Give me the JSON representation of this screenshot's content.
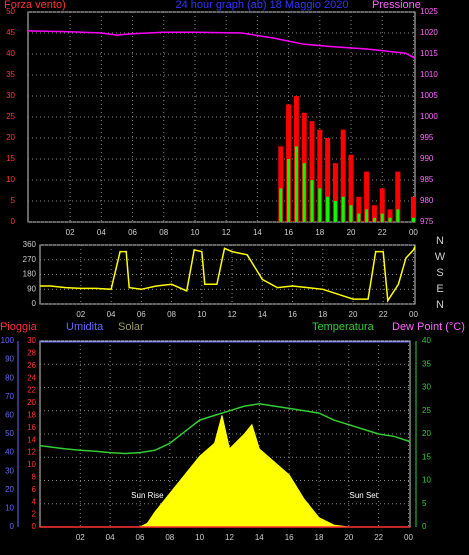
{
  "chart_data": [
    {
      "type": "bar",
      "title": "24 hour graph (ab) 18 Maggio 2020",
      "left_label": "Forza vento)",
      "right_label": "Pressione",
      "xlim": [
        -0.7,
        24.1
      ],
      "xticks": [
        {
          "value": 2,
          "label": "02"
        },
        {
          "value": 4,
          "label": "04"
        },
        {
          "value": 6,
          "label": "06"
        },
        {
          "value": 8,
          "label": "08"
        },
        10,
        12,
        14,
        16,
        18,
        20,
        22,
        {
          "value": 24,
          "label": "00"
        }
      ],
      "ylim": [
        0,
        50
      ],
      "yticks": [
        0,
        5,
        10,
        15,
        20,
        25,
        30,
        35,
        40,
        45,
        50
      ],
      "y2lim": [
        975,
        1025
      ],
      "y2ticks": [
        975,
        980,
        985,
        990,
        995,
        1000,
        1005,
        1010,
        1015,
        1020,
        1025
      ],
      "series": [
        {
          "style": "bar",
          "color": "#ff0000",
          "x": [
            15,
            15.5,
            16,
            16.5,
            17,
            17.5,
            18,
            18.5,
            19,
            19.5,
            20,
            20.5,
            21,
            21.5,
            22,
            22.5,
            23,
            23.5,
            24
          ],
          "values": [
            0,
            18,
            28,
            30,
            26,
            24,
            22,
            20,
            14,
            22,
            16,
            6,
            12,
            4,
            8,
            3,
            12,
            0,
            6
          ]
        },
        {
          "style": "bar",
          "color": "#00ff00",
          "x": [
            15,
            15.5,
            16,
            16.5,
            17,
            17.5,
            18,
            18.5,
            19,
            19.5,
            20,
            20.5,
            21,
            21.5,
            22,
            22.5,
            23,
            23.5,
            24
          ],
          "values": [
            0,
            8,
            15,
            18,
            14,
            10,
            8,
            6,
            5,
            6,
            4,
            2,
            3,
            1,
            2,
            1,
            3,
            0,
            1
          ]
        },
        {
          "style": "line",
          "axis": "y2",
          "color": "#ff00ff",
          "x": [
            -0.7,
            2,
            4,
            5,
            6,
            8,
            10,
            13,
            15,
            17,
            19,
            21,
            23.5,
            24.1
          ],
          "values": [
            1020.5,
            1020.3,
            1020,
            1019.5,
            1019.8,
            1020.2,
            1020.2,
            1020,
            1018.8,
            1017.3,
            1016.7,
            1016.2,
            1015.2,
            1014
          ]
        }
      ]
    },
    {
      "type": "line",
      "right_labels": [
        "N",
        "W",
        "S",
        "E",
        "N"
      ],
      "xlim": [
        -0.7,
        24.1
      ],
      "xticks": [
        {
          "value": 2,
          "label": "02"
        },
        {
          "value": 4,
          "label": "04"
        },
        {
          "value": 6,
          "label": "06"
        },
        {
          "value": 8,
          "label": "08"
        },
        10,
        12,
        14,
        16,
        18,
        20,
        22,
        {
          "value": 24,
          "label": "00"
        }
      ],
      "ylim": [
        0,
        360
      ],
      "yticks": [
        0,
        90,
        180,
        270,
        360
      ],
      "series": [
        {
          "style": "line",
          "color": "#ffff00",
          "x": [
            -0.7,
            0,
            1,
            2,
            3,
            4,
            4.6,
            5,
            5.2,
            6,
            7,
            8,
            9,
            9.5,
            10,
            10.2,
            11,
            11.5,
            12,
            13,
            14,
            15,
            16,
            17,
            18,
            19,
            20,
            21,
            21.5,
            22,
            22.3,
            23,
            23.5,
            24,
            24.1
          ],
          "values": [
            110,
            110,
            100,
            95,
            95,
            90,
            320,
            320,
            100,
            90,
            110,
            120,
            80,
            330,
            320,
            120,
            120,
            340,
            320,
            300,
            150,
            100,
            110,
            100,
            90,
            60,
            30,
            30,
            320,
            320,
            20,
            120,
            280,
            330,
            350
          ]
        }
      ]
    },
    {
      "type": "line",
      "labels": [
        "Pioggia",
        "Umidita",
        "Solar",
        "Temperatura",
        "Dew Point (°C)"
      ],
      "xlim": [
        -0.7,
        24.1
      ],
      "xticks": [
        {
          "value": 2,
          "label": "02"
        },
        {
          "value": 4,
          "label": "04"
        },
        {
          "value": 6,
          "label": "06"
        },
        {
          "value": 8,
          "label": "08"
        },
        10,
        12,
        14,
        16,
        18,
        20,
        22,
        {
          "value": 24,
          "label": "00"
        }
      ],
      "ylim": [
        0,
        100
      ],
      "yticks": [
        0,
        10,
        20,
        30,
        40,
        50,
        60,
        70,
        80,
        90,
        100
      ],
      "y3lim": [
        0,
        30
      ],
      "y3ticks": [
        0,
        2,
        4,
        6,
        8,
        10,
        12,
        14,
        16,
        18,
        20,
        22,
        24,
        26,
        28,
        30
      ],
      "y2lim": [
        0,
        40
      ],
      "y2ticks": [
        0,
        5,
        10,
        15,
        20,
        25,
        30,
        35,
        40
      ],
      "annotations": [
        {
          "text": "Sun Rise",
          "x": 6.5
        },
        {
          "text": "Sun Set",
          "x": 21
        }
      ],
      "series": [
        {
          "style": "area",
          "color": "#ffff00",
          "x": [
            -0.7,
            6,
            6.5,
            7,
            8,
            9,
            10,
            11,
            11.5,
            12,
            13,
            13.5,
            14,
            15,
            16,
            17,
            18,
            19,
            20,
            24.1
          ],
          "values": [
            0,
            0,
            2,
            8,
            18,
            28,
            38,
            45,
            60,
            42,
            50,
            55,
            42,
            35,
            28,
            15,
            5,
            1,
            0,
            0
          ]
        },
        {
          "style": "line",
          "axis": "y2",
          "color": "#33cc33",
          "x": [
            -0.7,
            0,
            1,
            2,
            3,
            4,
            5,
            6,
            7,
            8,
            9,
            10,
            11,
            12,
            13,
            14,
            15,
            16,
            17,
            18,
            19,
            20,
            21,
            22,
            23,
            24,
            24.1
          ],
          "values": [
            17.5,
            17.2,
            16.8,
            16.5,
            16.3,
            16,
            15.8,
            16,
            16.5,
            18,
            20.5,
            23,
            24,
            25,
            26,
            26.5,
            26,
            25.5,
            25,
            24.5,
            23,
            22,
            21,
            20,
            19.5,
            18.5,
            18.2
          ]
        },
        {
          "style": "line",
          "axis": "y3",
          "color": "#ff3333",
          "x": [
            -0.7,
            24.1
          ],
          "values": [
            0,
            0
          ]
        }
      ]
    }
  ]
}
